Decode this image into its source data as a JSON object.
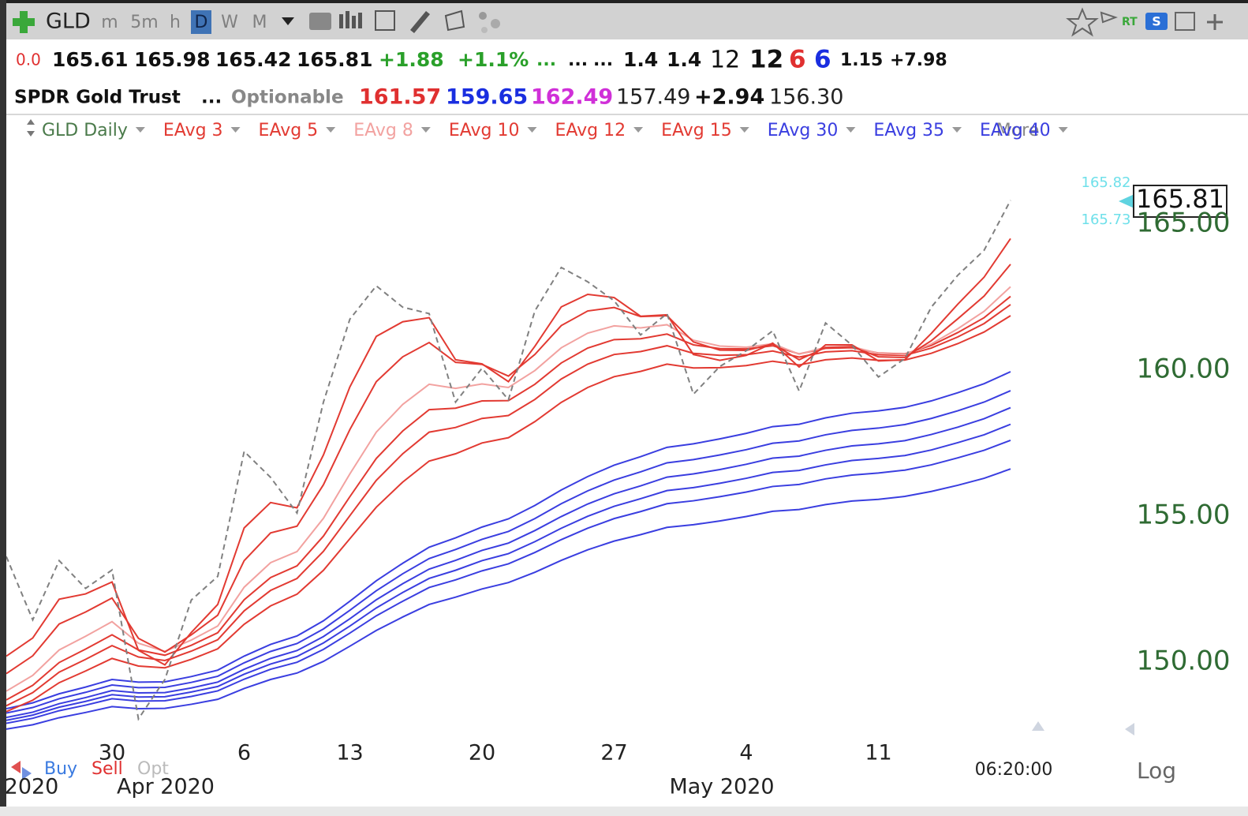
{
  "toolbar": {
    "symbol": "GLD",
    "timeframes": [
      "m",
      "5m",
      "h",
      "D",
      "W",
      "M"
    ],
    "active": "D",
    "rt": "RT"
  },
  "quote": {
    "line1": [
      "0.0",
      "165.61",
      "165.98",
      "165.42",
      "165.81",
      "+1.88",
      "+1.1%",
      "...",
      "...",
      "...",
      "1.4",
      "1.4",
      "12",
      "12",
      "6",
      "6",
      "1.15",
      "+7.98"
    ],
    "line2": [
      "SPDR Gold Trust",
      "...",
      "Optionable",
      "161.57",
      "159.65",
      "162.49",
      "157.49",
      "+2.94",
      "156.30"
    ]
  },
  "indicator_bar": {
    "more": "More"
  },
  "chart_data": {
    "type": "line",
    "categories": [
      null,
      null,
      null,
      null,
      "30",
      null,
      null,
      null,
      null,
      "6",
      null,
      null,
      null,
      "13",
      null,
      null,
      null,
      null,
      "20",
      null,
      null,
      null,
      null,
      "27",
      null,
      null,
      null,
      null,
      "4",
      null,
      null,
      null,
      null,
      "11",
      null,
      null,
      null,
      null,
      null
    ],
    "x_month_labels": [
      "2020",
      "Apr 2020",
      "May 2020"
    ],
    "ylim": [
      147.4,
      167.4
    ],
    "yticks": [
      {
        "value": 150,
        "label": "150.00"
      },
      {
        "value": 155,
        "label": "155.00"
      },
      {
        "value": 160,
        "label": "160.00"
      },
      {
        "value": 165,
        "label": "165.00"
      }
    ],
    "side_prices": [
      165.82,
      165.73
    ],
    "series": [
      {
        "name": "GLD Daily",
        "color": "#808080",
        "dash": true,
        "values": [
          153.61,
          151.44,
          153.47,
          152.52,
          153.15,
          148.05,
          149.4,
          152.12,
          152.93,
          157.21,
          156.32,
          155.1,
          158.9,
          161.74,
          162.88,
          162.15,
          161.93,
          158.9,
          160.06,
          158.98,
          162.02,
          163.51,
          163.02,
          162.37,
          161.2,
          161.93,
          159.17,
          160.12,
          160.66,
          161.34,
          159.28,
          161.61,
          160.85,
          159.76,
          160.39,
          162.15,
          163.24,
          164.1,
          165.81
        ]
      },
      {
        "name": "EAvg 3",
        "color": "#e23a32",
        "values": [
          150.2,
          150.82,
          152.15,
          152.33,
          152.74,
          150.4,
          149.9,
          151.01,
          151.97,
          154.59,
          155.46,
          155.28,
          157.09,
          159.42,
          161.15,
          161.65,
          161.79,
          160.35,
          160.21,
          159.6,
          160.81,
          162.16,
          162.59,
          162.48,
          161.84,
          161.89,
          160.53,
          160.33,
          160.5,
          160.92,
          160.1,
          160.86,
          160.86,
          160.31,
          160.35,
          161.25,
          162.25,
          163.18,
          164.5
        ]
      },
      {
        "name": "EAvg 5",
        "color": "#e23a32",
        "values": [
          149.6,
          150.21,
          151.3,
          151.71,
          152.19,
          150.81,
          150.34,
          150.93,
          151.6,
          153.47,
          154.42,
          154.65,
          156.07,
          157.96,
          159.6,
          160.45,
          160.94,
          160.26,
          160.19,
          159.79,
          160.53,
          161.52,
          162.02,
          162.14,
          161.83,
          161.86,
          160.96,
          160.68,
          160.67,
          160.89,
          160.35,
          160.77,
          160.8,
          160.45,
          160.43,
          161.0,
          161.75,
          162.53,
          163.62
        ]
      },
      {
        "name": "EAvg 8",
        "color": "#f2a2a0",
        "values": [
          149.0,
          149.54,
          150.41,
          150.88,
          151.38,
          150.64,
          150.36,
          150.75,
          151.23,
          152.56,
          153.4,
          153.78,
          154.92,
          156.44,
          157.87,
          158.82,
          159.51,
          159.37,
          159.52,
          159.4,
          159.98,
          160.76,
          161.26,
          161.51,
          161.44,
          161.55,
          161.02,
          160.82,
          160.78,
          160.9,
          160.54,
          160.78,
          160.8,
          160.57,
          160.53,
          160.89,
          161.41,
          162.01,
          162.85
        ]
      },
      {
        "name": "EAvg 10",
        "color": "#e23a32",
        "values": [
          148.7,
          149.2,
          149.98,
          150.44,
          150.93,
          150.41,
          150.23,
          150.57,
          151.0,
          152.13,
          152.89,
          153.29,
          154.31,
          155.66,
          156.97,
          157.91,
          158.64,
          158.69,
          158.94,
          158.95,
          159.51,
          160.24,
          160.75,
          161.04,
          161.07,
          161.23,
          160.86,
          160.73,
          160.72,
          160.83,
          160.55,
          160.74,
          160.76,
          160.58,
          160.55,
          160.84,
          161.28,
          161.79,
          162.52
        ]
      },
      {
        "name": "EAvg 12",
        "color": "#e23a32",
        "values": [
          148.5,
          148.95,
          149.65,
          150.09,
          150.56,
          150.17,
          150.05,
          150.37,
          150.76,
          151.75,
          152.45,
          152.86,
          153.79,
          155.01,
          156.22,
          157.13,
          157.87,
          158.03,
          158.34,
          158.44,
          158.99,
          159.69,
          160.2,
          160.53,
          160.63,
          160.83,
          160.57,
          160.5,
          160.52,
          160.65,
          160.44,
          160.62,
          160.66,
          160.52,
          160.5,
          160.75,
          161.13,
          161.59,
          162.24
        ]
      },
      {
        "name": "EAvg 15",
        "color": "#e23a32",
        "values": [
          148.3,
          148.69,
          149.29,
          149.69,
          150.12,
          149.86,
          149.8,
          150.09,
          150.45,
          151.29,
          151.92,
          152.32,
          153.14,
          154.22,
          155.3,
          156.16,
          156.88,
          157.13,
          157.5,
          157.68,
          158.23,
          158.89,
          159.4,
          159.77,
          159.95,
          160.2,
          160.07,
          160.08,
          160.15,
          160.3,
          160.17,
          160.35,
          160.41,
          160.33,
          160.34,
          160.57,
          160.9,
          161.3,
          161.86
        ]
      },
      {
        "name": "EAvg 30",
        "color": "#3a3ee0",
        "values": [
          148.4,
          148.6,
          148.91,
          149.14,
          149.4,
          149.31,
          149.32,
          149.5,
          149.72,
          150.2,
          150.6,
          150.89,
          151.41,
          152.08,
          152.78,
          153.38,
          153.93,
          154.25,
          154.62,
          154.9,
          155.36,
          155.89,
          156.35,
          156.74,
          157.03,
          157.35,
          157.47,
          157.64,
          157.83,
          158.06,
          158.14,
          158.36,
          158.52,
          158.6,
          158.72,
          158.94,
          159.22,
          159.53,
          159.94
        ]
      },
      {
        "name": "EAvg 35",
        "color": "#3a3ee0",
        "values": [
          148.25,
          148.44,
          148.74,
          148.96,
          149.21,
          149.12,
          149.13,
          149.3,
          149.51,
          149.97,
          150.36,
          150.63,
          151.13,
          151.77,
          152.44,
          153.02,
          153.54,
          153.85,
          154.2,
          154.47,
          154.91,
          155.42,
          155.86,
          156.23,
          156.51,
          156.82,
          156.93,
          157.09,
          157.27,
          157.49,
          157.57,
          157.78,
          157.93,
          158.01,
          158.13,
          158.34,
          158.6,
          158.9,
          159.29
        ]
      },
      {
        "name": "EAvg 40",
        "color": "#3a3ee0",
        "values": [
          148.1,
          148.28,
          148.57,
          148.78,
          149.02,
          148.94,
          148.95,
          149.11,
          149.31,
          149.75,
          150.12,
          150.39,
          150.87,
          151.48,
          152.13,
          152.68,
          153.18,
          153.48,
          153.82,
          154.07,
          154.5,
          154.98,
          155.41,
          155.76,
          156.03,
          156.33,
          156.44,
          156.59,
          156.77,
          156.98,
          157.05,
          157.25,
          157.4,
          157.47,
          157.58,
          157.79,
          158.04,
          158.33,
          158.71
        ]
      },
      {
        "color": "#3a3ee0",
        "values": [
          148.0,
          148.18,
          148.45,
          148.65,
          148.88,
          148.8,
          148.81,
          148.97,
          149.16,
          149.58,
          149.93,
          150.19,
          150.65,
          151.23,
          151.85,
          152.38,
          152.86,
          153.14,
          153.47,
          153.71,
          154.12,
          154.58,
          154.99,
          155.33,
          155.59,
          155.87,
          155.97,
          156.12,
          156.29,
          156.49,
          156.56,
          156.75,
          156.9,
          156.97,
          157.07,
          157.26,
          157.51,
          157.78,
          158.14
        ]
      },
      {
        "color": "#3a3ee0",
        "values": [
          147.9,
          148.07,
          148.33,
          148.52,
          148.74,
          148.66,
          148.67,
          148.82,
          149.01,
          149.41,
          149.75,
          149.99,
          150.43,
          150.99,
          151.58,
          152.08,
          152.55,
          152.81,
          153.12,
          153.36,
          153.75,
          154.19,
          154.58,
          154.91,
          155.15,
          155.42,
          155.52,
          155.66,
          155.82,
          156.01,
          156.08,
          156.27,
          156.4,
          156.47,
          156.57,
          156.75,
          156.99,
          157.25,
          157.59
        ]
      },
      {
        "color": "#3a3ee0",
        "values": [
          147.7,
          147.85,
          148.09,
          148.27,
          148.47,
          148.4,
          148.41,
          148.55,
          148.72,
          149.09,
          149.4,
          149.62,
          150.02,
          150.54,
          151.08,
          151.54,
          151.97,
          152.22,
          152.5,
          152.72,
          153.07,
          153.48,
          153.84,
          154.14,
          154.36,
          154.61,
          154.7,
          154.83,
          154.98,
          155.16,
          155.22,
          155.39,
          155.51,
          155.57,
          155.67,
          155.84,
          156.05,
          156.29,
          156.61
        ]
      }
    ]
  },
  "footer": {
    "buy": "Buy",
    "sell": "Sell",
    "opt": "Opt",
    "time": "06:20:00",
    "scale": "Log"
  }
}
